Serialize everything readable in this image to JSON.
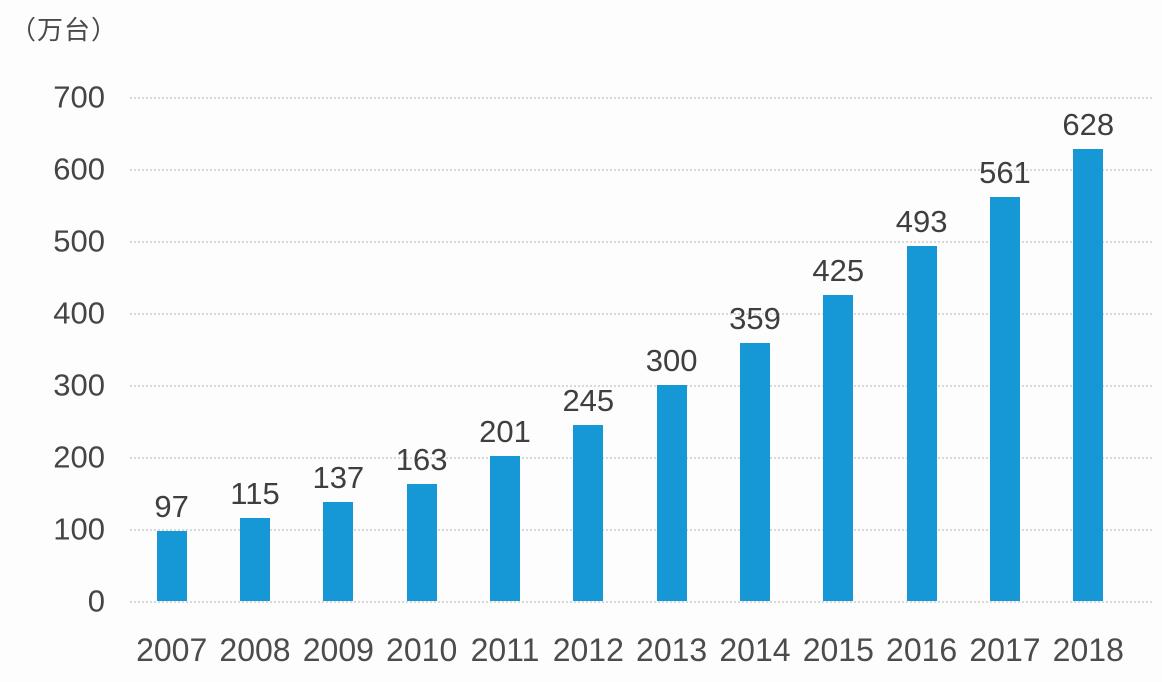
{
  "unit_label": "（万台）",
  "colors": {
    "bar": "#1598d5",
    "gridline": "#d8d8d8",
    "axis_text": "#454545",
    "value_text": "#3f3f3f",
    "background": "#fdfdfd"
  },
  "chart_data": {
    "type": "bar",
    "categories": [
      "2007",
      "2008",
      "2009",
      "2010",
      "2011",
      "2012",
      "2013",
      "2014",
      "2015",
      "2016",
      "2017",
      "2018"
    ],
    "values": [
      97,
      115,
      137,
      163,
      201,
      245,
      300,
      359,
      425,
      493,
      561,
      628
    ],
    "title": "",
    "xlabel": "",
    "ylabel": "（万台）",
    "ylim": [
      0,
      700
    ],
    "yticks": [
      0,
      100,
      200,
      300,
      400,
      500,
      600,
      700
    ],
    "grid": "horizontal dotted gridlines at every 100",
    "legend": "none",
    "data_labels": "above each bar"
  }
}
